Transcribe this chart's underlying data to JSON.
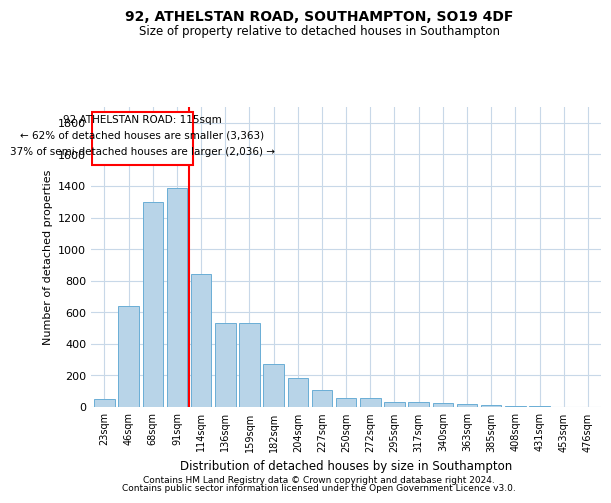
{
  "title1": "92, ATHELSTAN ROAD, SOUTHAMPTON, SO19 4DF",
  "title2": "Size of property relative to detached houses in Southampton",
  "xlabel": "Distribution of detached houses by size in Southampton",
  "ylabel": "Number of detached properties",
  "bar_color": "#b8d4e8",
  "bar_edge_color": "#6aaed6",
  "background_color": "#ffffff",
  "grid_color": "#c8d8e8",
  "categories": [
    "23sqm",
    "46sqm",
    "68sqm",
    "91sqm",
    "114sqm",
    "136sqm",
    "159sqm",
    "182sqm",
    "204sqm",
    "227sqm",
    "250sqm",
    "272sqm",
    "295sqm",
    "317sqm",
    "340sqm",
    "363sqm",
    "385sqm",
    "408sqm",
    "431sqm",
    "453sqm",
    "476sqm"
  ],
  "values": [
    50,
    640,
    1300,
    1390,
    840,
    530,
    530,
    270,
    185,
    105,
    60,
    60,
    30,
    30,
    25,
    20,
    15,
    8,
    5,
    3,
    3
  ],
  "ylim": [
    0,
    1900
  ],
  "yticks": [
    0,
    200,
    400,
    600,
    800,
    1000,
    1200,
    1400,
    1600,
    1800
  ],
  "red_line_index": 4,
  "annotation_line1": "92 ATHELSTAN ROAD: 115sqm",
  "annotation_line2": "← 62% of detached houses are smaller (3,363)",
  "annotation_line3": "37% of semi-detached houses are larger (2,036) →",
  "footer1": "Contains HM Land Registry data © Crown copyright and database right 2024.",
  "footer2": "Contains public sector information licensed under the Open Government Licence v3.0."
}
